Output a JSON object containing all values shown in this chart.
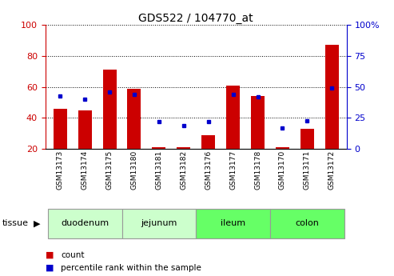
{
  "title": "GDS522 / 104770_at",
  "samples": [
    "GSM13173",
    "GSM13174",
    "GSM13175",
    "GSM13180",
    "GSM13181",
    "GSM13182",
    "GSM13176",
    "GSM13177",
    "GSM13178",
    "GSM13170",
    "GSM13171",
    "GSM13172"
  ],
  "count_values": [
    46,
    45,
    71,
    59,
    21,
    21,
    29,
    61,
    54,
    21,
    33,
    87
  ],
  "percentile_values": [
    43,
    40,
    46,
    44,
    22,
    19,
    22,
    44,
    42,
    17,
    23,
    49
  ],
  "groups": [
    {
      "name": "duodenum",
      "start": 0,
      "end": 3,
      "color": "#ccffcc"
    },
    {
      "name": "jejunum",
      "start": 3,
      "end": 6,
      "color": "#ccffcc"
    },
    {
      "name": "ileum",
      "start": 6,
      "end": 9,
      "color": "#66ff66"
    },
    {
      "name": "colon",
      "start": 9,
      "end": 12,
      "color": "#66ff66"
    }
  ],
  "ylim_left": [
    20,
    100
  ],
  "ylim_right": [
    0,
    100
  ],
  "yticks_left": [
    20,
    40,
    60,
    80,
    100
  ],
  "yticks_right": [
    0,
    25,
    50,
    75,
    100
  ],
  "ytick_labels_right": [
    "0",
    "25",
    "50",
    "75",
    "100%"
  ],
  "bar_color": "#cc0000",
  "dot_color": "#0000cc",
  "left_axis_color": "#cc0000",
  "right_axis_color": "#0000cc",
  "background_color": "#ffffff",
  "bar_width": 0.55,
  "tissue_label": "tissue",
  "legend_count": "count",
  "legend_percentile": "percentile rank within the sample",
  "label_bg_color": "#cccccc",
  "grid_color": "black",
  "grid_style": ":",
  "tick_fontsize": 8,
  "sample_fontsize": 6.5,
  "group_fontsize": 8,
  "title_fontsize": 10
}
